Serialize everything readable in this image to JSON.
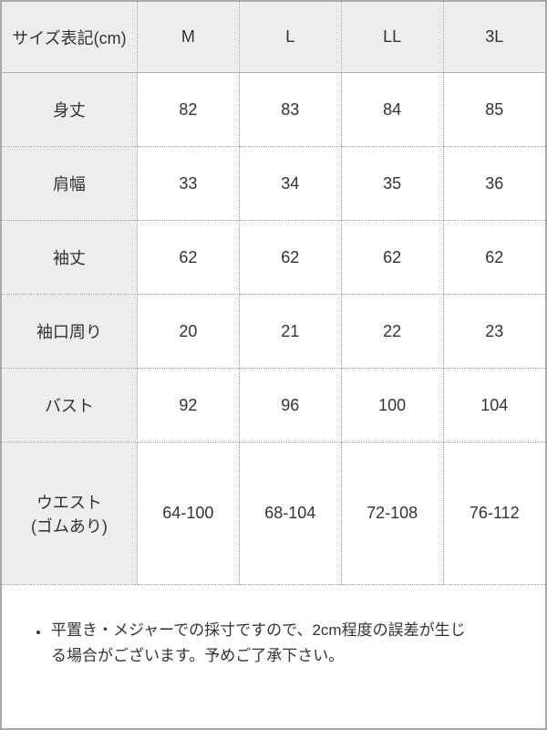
{
  "size_chart": {
    "header": {
      "label": "サイズ表記(cm)",
      "sizes": [
        "M",
        "L",
        "LL",
        "3L"
      ]
    },
    "rows": [
      {
        "label": "身丈",
        "values": [
          "82",
          "83",
          "84",
          "85"
        ]
      },
      {
        "label": "肩幅",
        "values": [
          "33",
          "34",
          "35",
          "36"
        ]
      },
      {
        "label": "袖丈",
        "values": [
          "62",
          "62",
          "62",
          "62"
        ]
      },
      {
        "label": "袖口周り",
        "values": [
          "20",
          "21",
          "22",
          "23"
        ]
      },
      {
        "label": "バスト",
        "values": [
          "92",
          "96",
          "100",
          "104"
        ]
      },
      {
        "label": "ウエスト",
        "label_line2": "(ゴムあり)",
        "values": [
          "64-100",
          "68-104",
          "72-108",
          "76-112"
        ]
      }
    ]
  },
  "note": {
    "bullet_items": [
      "平置き・メジャーでの採寸ですので、2cm程度の誤差が生じる場合がございます。予めご了承下さい。"
    ]
  },
  "colors": {
    "label_background": "#ededed",
    "solid_border": "#b2b2b2",
    "dotted_border": "#9c9c9c",
    "outer_border": "#a9a9a9",
    "text": "#333333"
  },
  "chart_data": {
    "type": "table",
    "title": "サイズ表記(cm)",
    "columns": [
      "サイズ表記(cm)",
      "M",
      "L",
      "LL",
      "3L"
    ],
    "rows": [
      [
        "身丈",
        "82",
        "83",
        "84",
        "85"
      ],
      [
        "肩幅",
        "33",
        "34",
        "35",
        "36"
      ],
      [
        "袖丈",
        "62",
        "62",
        "62",
        "62"
      ],
      [
        "袖口周り",
        "20",
        "21",
        "22",
        "23"
      ],
      [
        "バスト",
        "92",
        "96",
        "100",
        "104"
      ],
      [
        "ウエスト(ゴムあり)",
        "64-100",
        "68-104",
        "72-108",
        "76-112"
      ]
    ],
    "footnote": "平置き・メジャーでの採寸ですので、2cm程度の誤差が生じる場合がございます。予めご了承下さい。"
  }
}
